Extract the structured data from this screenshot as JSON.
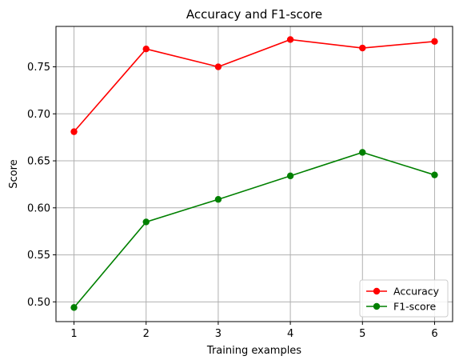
{
  "chart_data": {
    "type": "line",
    "title": "Accuracy and F1-score",
    "xlabel": "Training examples",
    "ylabel": "Score",
    "x": [
      1,
      2,
      3,
      4,
      5,
      6
    ],
    "xticks": [
      "1",
      "2",
      "3",
      "4",
      "5",
      "6"
    ],
    "yticks": [
      "0.50",
      "0.55",
      "0.60",
      "0.65",
      "0.70",
      "0.75"
    ],
    "ytick_values": [
      0.5,
      0.55,
      0.6,
      0.65,
      0.7,
      0.75
    ],
    "xlim": [
      0.75,
      6.25
    ],
    "ylim": [
      0.479,
      0.793
    ],
    "grid": true,
    "legend_position": "bottom-right",
    "series": [
      {
        "name": "Accuracy",
        "color": "#ff0000",
        "values": [
          0.681,
          0.769,
          0.75,
          0.779,
          0.77,
          0.777
        ]
      },
      {
        "name": "F1-score",
        "color": "#008000",
        "values": [
          0.494,
          0.585,
          0.609,
          0.634,
          0.659,
          0.635
        ]
      }
    ]
  }
}
